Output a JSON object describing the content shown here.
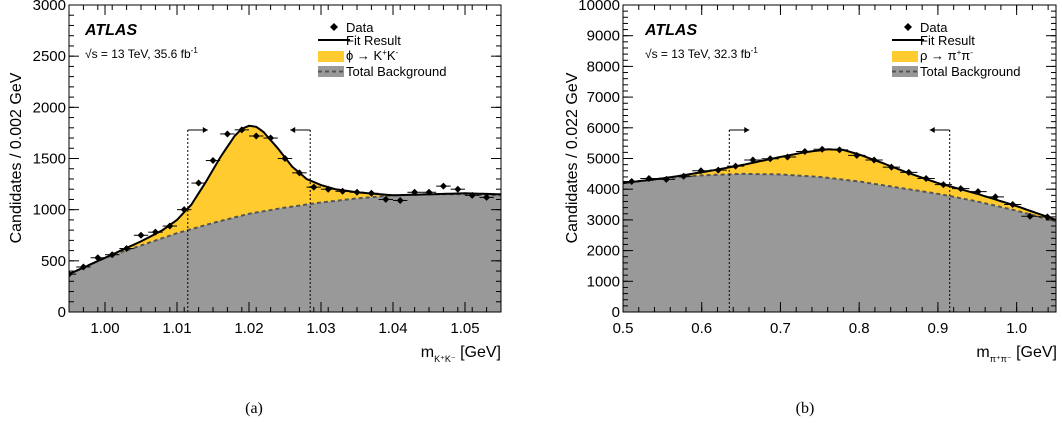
{
  "colors": {
    "signal": "#ffcb2f",
    "background": "#999999",
    "background_line": "#555555",
    "fit": "#000000"
  },
  "chart_data": [
    {
      "type": "line",
      "panel_label": "(a)",
      "experiment": "ATLAS",
      "energy_text": "√s = 13 TeV, 35.6 fb",
      "energy_sup": "-1",
      "ylabel": "Candidates / 0.002 GeV",
      "xlabel": "m",
      "xlabel_sub": "K⁺K⁻",
      "xlabel_unit": " [GeV]",
      "xlim": [
        0.995,
        1.055
      ],
      "ylim": [
        0,
        3000
      ],
      "xticks": [
        1.0,
        1.01,
        1.02,
        1.03,
        1.04,
        1.05
      ],
      "xtick_labels": [
        "1.00",
        "1.01",
        "1.02",
        "1.03",
        "1.04",
        "1.05"
      ],
      "yticks": [
        0,
        500,
        1000,
        1500,
        2000,
        2500,
        3000
      ],
      "ytick_labels": [
        "0",
        "500",
        "1000",
        "1500",
        "2000",
        "2500",
        "3000"
      ],
      "legend": {
        "data": "Data",
        "fit": "Fit Result",
        "signal": "ϕ → K",
        "signal_sup": "+",
        "signal_rest": "K",
        "signal_sup2": "-",
        "background": "Total Background",
        "placement": "top-right"
      },
      "window": [
        1.0115,
        1.0285
      ],
      "data_x": [
        0.995,
        0.997,
        0.999,
        1.001,
        1.003,
        1.005,
        1.007,
        1.009,
        1.011,
        1.013,
        1.015,
        1.017,
        1.019,
        1.021,
        1.023,
        1.025,
        1.027,
        1.029,
        1.031,
        1.033,
        1.035,
        1.037,
        1.039,
        1.041,
        1.043,
        1.045,
        1.047,
        1.049,
        1.051,
        1.053
      ],
      "data_y": [
        370,
        440,
        530,
        560,
        620,
        750,
        780,
        840,
        1000,
        1260,
        1480,
        1740,
        1780,
        1720,
        1700,
        1500,
        1360,
        1220,
        1200,
        1180,
        1170,
        1160,
        1100,
        1090,
        1170,
        1170,
        1230,
        1200,
        1140,
        1120
      ],
      "fit_x": [
        0.995,
        1.0,
        1.005,
        1.008,
        1.01,
        1.012,
        1.014,
        1.016,
        1.018,
        1.019,
        1.02,
        1.021,
        1.022,
        1.024,
        1.026,
        1.028,
        1.03,
        1.032,
        1.035,
        1.04,
        1.045,
        1.05,
        1.055
      ],
      "fit_y": [
        370,
        530,
        690,
        800,
        900,
        1050,
        1270,
        1510,
        1720,
        1790,
        1820,
        1810,
        1760,
        1600,
        1420,
        1300,
        1240,
        1200,
        1170,
        1140,
        1150,
        1160,
        1150
      ],
      "background_x": [
        0.995,
        1.0,
        1.005,
        1.01,
        1.015,
        1.02,
        1.025,
        1.03,
        1.035,
        1.04,
        1.045,
        1.05,
        1.055
      ],
      "background_y": [
        370,
        530,
        650,
        770,
        870,
        960,
        1020,
        1070,
        1110,
        1140,
        1150,
        1150,
        1140
      ]
    },
    {
      "type": "line",
      "panel_label": "(b)",
      "experiment": "ATLAS",
      "energy_text": "√s = 13 TeV, 32.3 fb",
      "energy_sup": "-1",
      "ylabel": "Candidates / 0.022 GeV",
      "xlabel": "m",
      "xlabel_sub": "π⁺π⁻",
      "xlabel_unit": " [GeV]",
      "xlim": [
        0.5,
        1.05
      ],
      "ylim": [
        0,
        10000
      ],
      "xticks": [
        0.5,
        0.6,
        0.7,
        0.8,
        0.9,
        1.0
      ],
      "xtick_labels": [
        "0.5",
        "0.6",
        "0.7",
        "0.8",
        "0.9",
        "1.0"
      ],
      "yticks": [
        0,
        1000,
        2000,
        3000,
        4000,
        5000,
        6000,
        7000,
        8000,
        9000,
        10000
      ],
      "ytick_labels": [
        "0",
        "1000",
        "2000",
        "3000",
        "4000",
        "5000",
        "6000",
        "7000",
        "8000",
        "9000",
        "10000"
      ],
      "legend": {
        "data": "Data",
        "fit": "Fit Result",
        "signal": "ρ → π",
        "signal_sup": "+",
        "signal_rest": "π",
        "signal_sup2": "-",
        "background": "Total Background",
        "placement": "top-right"
      },
      "window": [
        0.635,
        0.915
      ],
      "data_x": [
        0.511,
        0.533,
        0.555,
        0.577,
        0.599,
        0.621,
        0.643,
        0.665,
        0.687,
        0.709,
        0.731,
        0.753,
        0.775,
        0.797,
        0.819,
        0.841,
        0.863,
        0.885,
        0.907,
        0.929,
        0.951,
        0.973,
        0.995,
        1.017,
        1.039
      ],
      "data_y": [
        4250,
        4350,
        4320,
        4420,
        4600,
        4620,
        4750,
        4950,
        4990,
        5050,
        5230,
        5300,
        5280,
        5100,
        4950,
        4720,
        4550,
        4350,
        4150,
        4020,
        3920,
        3750,
        3500,
        3120,
        3100
      ],
      "fit_x": [
        0.5,
        0.55,
        0.6,
        0.65,
        0.7,
        0.73,
        0.76,
        0.78,
        0.8,
        0.83,
        0.86,
        0.9,
        0.95,
        1.0,
        1.05
      ],
      "fit_y": [
        4200,
        4350,
        4550,
        4780,
        5050,
        5200,
        5300,
        5280,
        5130,
        4850,
        4550,
        4200,
        3850,
        3450,
        3000
      ],
      "background_x": [
        0.5,
        0.55,
        0.6,
        0.65,
        0.7,
        0.75,
        0.8,
        0.85,
        0.9,
        0.95,
        1.0,
        1.05
      ],
      "background_y": [
        4200,
        4350,
        4450,
        4500,
        4480,
        4400,
        4250,
        4050,
        3850,
        3600,
        3300,
        2950
      ]
    }
  ]
}
